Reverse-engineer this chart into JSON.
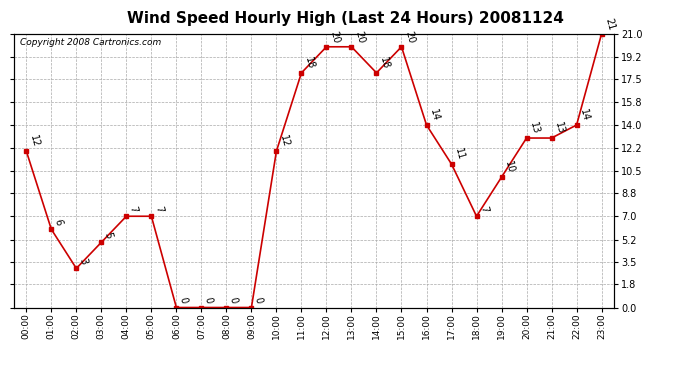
{
  "title": "Wind Speed Hourly High (Last 24 Hours) 20081124",
  "copyright": "Copyright 2008 Cartronics.com",
  "hours": [
    "00:00",
    "01:00",
    "02:00",
    "03:00",
    "04:00",
    "05:00",
    "06:00",
    "07:00",
    "08:00",
    "09:00",
    "10:00",
    "11:00",
    "12:00",
    "13:00",
    "14:00",
    "15:00",
    "16:00",
    "17:00",
    "18:00",
    "19:00",
    "20:00",
    "21:00",
    "22:00",
    "23:00"
  ],
  "values": [
    12,
    6,
    3,
    5,
    7,
    7,
    0,
    0,
    0,
    0,
    12,
    18,
    20,
    20,
    18,
    20,
    14,
    11,
    7,
    10,
    13,
    13,
    14,
    21
  ],
  "ylim": [
    0,
    21
  ],
  "yticks": [
    0.0,
    1.8,
    3.5,
    5.2,
    7.0,
    8.8,
    10.5,
    12.2,
    14.0,
    15.8,
    17.5,
    19.2,
    21.0
  ],
  "line_color": "#cc0000",
  "marker_color": "#cc0000",
  "background_color": "#ffffff",
  "plot_bg_color": "#ffffff",
  "grid_color": "#aaaaaa",
  "title_fontsize": 11,
  "annotation_fontsize": 7,
  "copyright_fontsize": 6.5
}
